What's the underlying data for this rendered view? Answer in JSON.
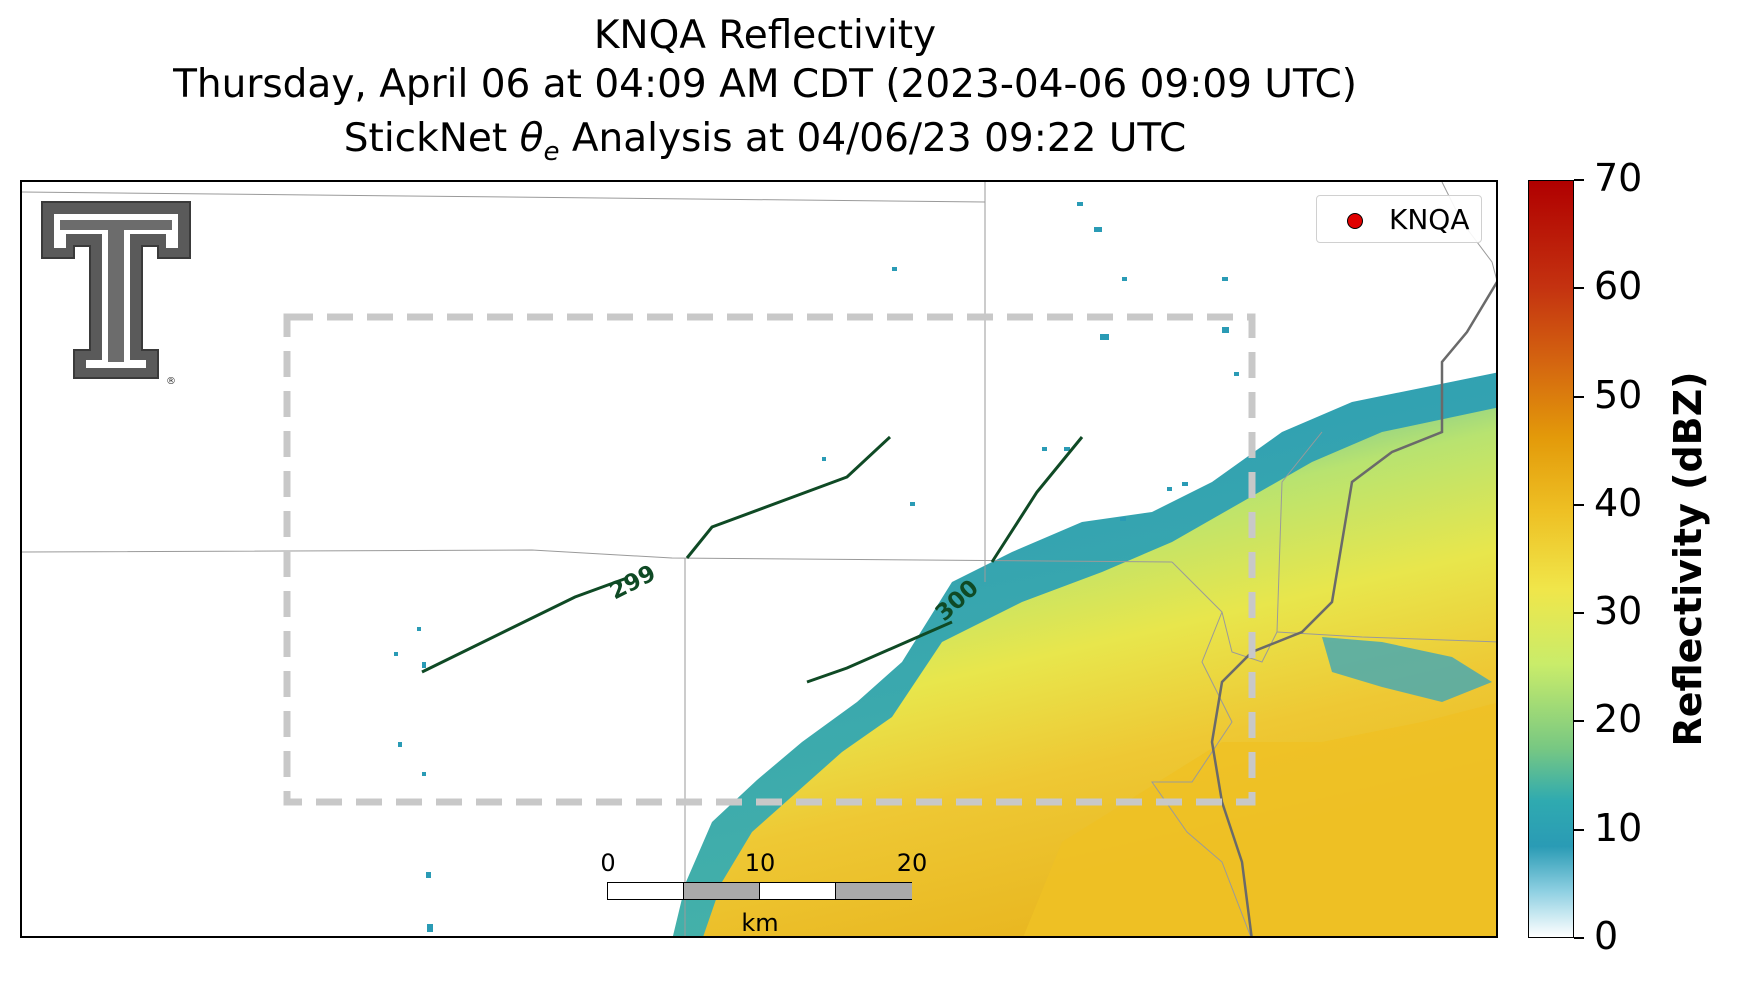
{
  "title": {
    "line1": "KNQA Reflectivity",
    "line2": "Thursday, April 06 at 04:09 AM CDT (2023-04-06 09:09 UTC)",
    "line3_prefix": "StickNet ",
    "line3_theta": "θ",
    "line3_sub": "e",
    "line3_suffix": " Analysis at 04/06/23 09:22 UTC"
  },
  "legend": {
    "station_label": "KNQA",
    "marker_color": "#e00000"
  },
  "logo": {
    "icon": "texas-tech-double-t-logo",
    "registered_mark": "®"
  },
  "colorbar": {
    "label": "Reflectivity (dBZ)",
    "ticks": [
      "0",
      "10",
      "20",
      "30",
      "40",
      "50",
      "60",
      "70"
    ],
    "range": [
      0,
      70
    ],
    "colors": [
      "#ffffff",
      "#2a9bb5",
      "#78c882",
      "#f0e64a",
      "#eec125",
      "#d46510",
      "#c43210",
      "#b00000"
    ]
  },
  "scalebar": {
    "labels": [
      "0",
      "10",
      "20"
    ],
    "unit": "km"
  },
  "contours": [
    {
      "label": "299",
      "color": "#0f4a25"
    },
    {
      "label": "300",
      "color": "#0f4a25"
    }
  ],
  "analysis_box": {
    "style": "dashed",
    "color": "#c8c8c8"
  }
}
